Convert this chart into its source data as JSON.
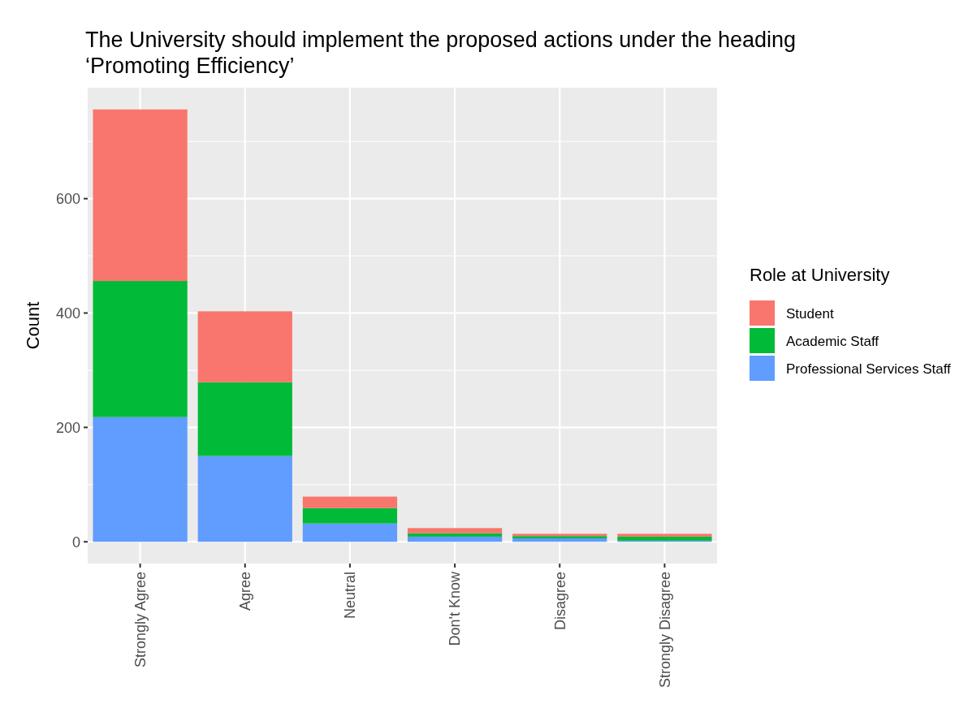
{
  "chart_data": {
    "type": "bar",
    "title": "The University should implement the proposed actions under the heading ‘Promoting Efficiency’",
    "ylabel": "Count",
    "legend_title": "Role at University",
    "categories": [
      "Strongly Agree",
      "Agree",
      "Neutral",
      "Don't Know",
      "Disagree",
      "Strongly Disagree"
    ],
    "series": [
      {
        "name": "Professional Services Staff",
        "color": "#619cff",
        "values": [
          218,
          150,
          32,
          9,
          6,
          2
        ]
      },
      {
        "name": "Academic Staff",
        "color": "#00ba38",
        "values": [
          238,
          129,
          27,
          6,
          4,
          7
        ]
      },
      {
        "name": "Student",
        "color": "#f8766d",
        "values": [
          300,
          124,
          20,
          9,
          4,
          5
        ]
      }
    ],
    "stacked": true,
    "ylim": [
      -38,
      794
    ],
    "yticks": [
      0,
      200,
      400,
      600
    ],
    "grid": true,
    "legend": "right"
  }
}
